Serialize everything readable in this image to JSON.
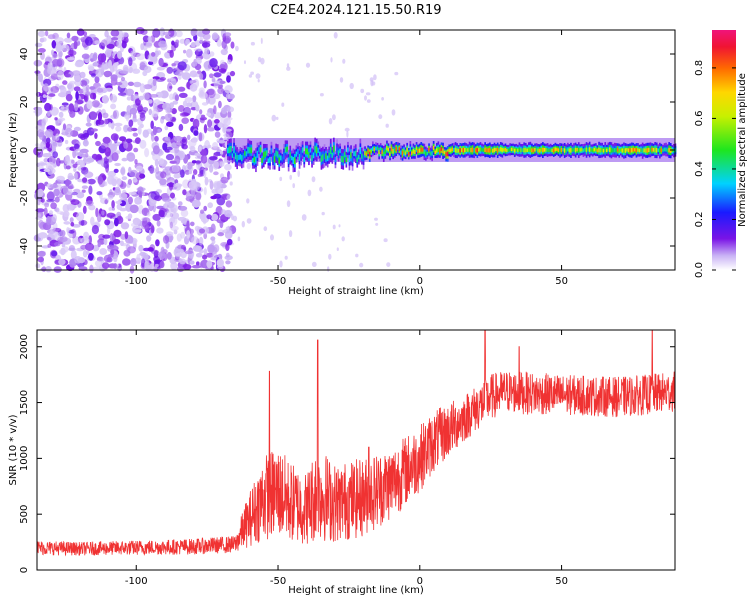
{
  "title": "C2E4.2024.121.15.50.R19",
  "colors": {
    "snr_line": "#f03232",
    "spectrogram_low": "#c9b2f5",
    "spectrogram_mid": "#7a14e6"
  },
  "chart_data": [
    {
      "type": "heatmap",
      "name": "spectrogram",
      "xlabel": "Height of straight line (km)",
      "ylabel": "Frequency (Hz)",
      "xlim": [
        -135,
        90
      ],
      "ylim": [
        -50,
        50
      ],
      "xticks": [
        -100,
        -50,
        0,
        50
      ],
      "yticks": [
        -40,
        -20,
        0,
        20,
        40
      ],
      "ytick_labels": [
        "-40",
        "-20",
        "0",
        "20",
        "40"
      ],
      "colorbar": {
        "label": "Normalized spectral amplitude",
        "range": [
          0,
          0.95
        ],
        "ticks": [
          0.0,
          0.2,
          0.4,
          0.6,
          0.8
        ],
        "tick_labels": [
          "0.0",
          "0.2",
          "0.4",
          "0.6",
          "0.8"
        ],
        "colormap": "rainbow (white-violet-blue-cyan-green-yellow-orange-red-magenta)"
      },
      "features": [
        {
          "region": "noise",
          "x_range": [
            -135,
            -68
          ],
          "freq_range": [
            -50,
            50
          ],
          "amplitude": "low, scattered"
        },
        {
          "region": "carrier",
          "x_range": [
            -68,
            90
          ],
          "freq_center": 0,
          "freq_halfwidth": 4,
          "amplitude": "high near 0 Hz, strongest from 0 to 90 km"
        }
      ]
    },
    {
      "type": "line",
      "name": "snr",
      "xlabel": "Height of straight line (km)",
      "ylabel": "SNR (10 * v/v)",
      "xlim": [
        -135,
        90
      ],
      "ylim": [
        0,
        2150
      ],
      "xticks": [
        -100,
        -50,
        0,
        50
      ],
      "yticks": [
        0,
        500,
        1000,
        1500,
        2000
      ],
      "ytick_labels": [
        "0",
        "500",
        "1000",
        "1500",
        "2000"
      ],
      "x": [
        -135,
        -120,
        -100,
        -80,
        -65,
        -62,
        -55,
        -50,
        -45,
        -40,
        -36,
        -30,
        -20,
        -10,
        0,
        5,
        10,
        15,
        20,
        25,
        30,
        40,
        50,
        60,
        70,
        80,
        90
      ],
      "mean": [
        200,
        190,
        200,
        210,
        230,
        380,
        650,
        700,
        600,
        550,
        700,
        600,
        650,
        780,
        1000,
        1150,
        1250,
        1350,
        1450,
        1550,
        1600,
        1580,
        1570,
        1560,
        1550,
        1570,
        1600
      ],
      "spread": [
        120,
        110,
        120,
        130,
        140,
        350,
        700,
        750,
        650,
        600,
        800,
        650,
        650,
        600,
        550,
        500,
        450,
        400,
        380,
        380,
        350,
        350,
        330,
        330,
        330,
        330,
        330
      ],
      "peaks": [
        [
          -53,
          1780
        ],
        [
          -36,
          2060
        ],
        [
          -18,
          1100
        ],
        [
          23,
          2150
        ],
        [
          35,
          2000
        ],
        [
          82,
          2150
        ]
      ]
    }
  ]
}
